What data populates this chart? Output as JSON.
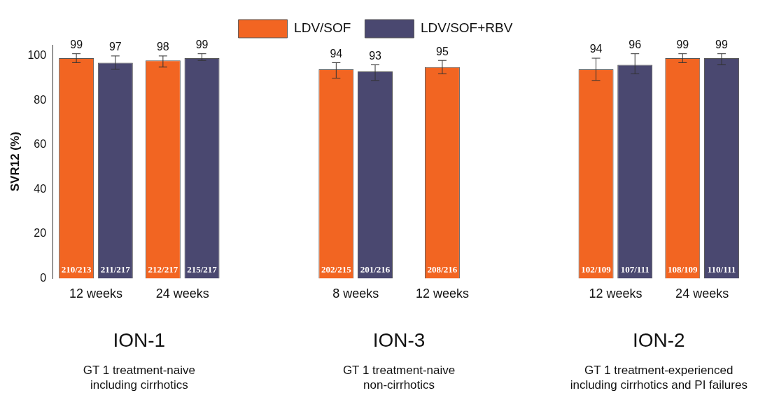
{
  "chart_data": {
    "type": "bar",
    "ylabel": "SVR12 (%)",
    "categories": [
      "12 weeks",
      "24 weeks",
      null,
      "8 weeks",
      "12 weeks",
      null,
      "12 weeks",
      "24 weeks"
    ],
    "series": [
      {
        "name": "LDV/SOF",
        "color": "#f26522",
        "values": [
          99,
          98,
          null,
          94,
          95,
          null,
          94,
          99
        ],
        "errors": [
          [
            97,
            101
          ],
          [
            95,
            100
          ],
          null,
          [
            90,
            97
          ],
          [
            92,
            98
          ],
          null,
          [
            89,
            99
          ],
          [
            97,
            101
          ]
        ],
        "value_labels": [
          "99",
          "98",
          null,
          "94",
          "95",
          null,
          "94",
          "99"
        ]
      },
      {
        "name": "LDV/SOF+RBV",
        "color": "#4a4870",
        "values": [
          97,
          99,
          null,
          93,
          null,
          null,
          96,
          99
        ],
        "errors": [
          [
            94,
            100
          ],
          [
            98,
            101
          ],
          null,
          [
            89,
            96
          ],
          null,
          null,
          [
            92,
            101
          ],
          [
            96,
            101
          ]
        ],
        "value_labels": [
          "97",
          "99",
          null,
          "93",
          null,
          null,
          "96",
          "99"
        ]
      }
    ],
    "ylim": [
      0,
      105
    ],
    "yticks": [
      0,
      20,
      40,
      60,
      80,
      100
    ],
    "grid": false,
    "legend": "top",
    "annotations": [
      "ION-1",
      "GT 1 treatment-naive\nincluding cirrhotics",
      "ION-3",
      "GT 1 treatment-naive\nnon-cirrhotics",
      "ION-2",
      "GT 1 treatment-experienced\nincluding cirrhotics and PI failures",
      "210/213",
      "211/217",
      "212/217",
      "215/217",
      "202/215",
      "201/216",
      "208/216",
      "102/109",
      "107/111",
      "108/109",
      "110/111"
    ]
  }
}
